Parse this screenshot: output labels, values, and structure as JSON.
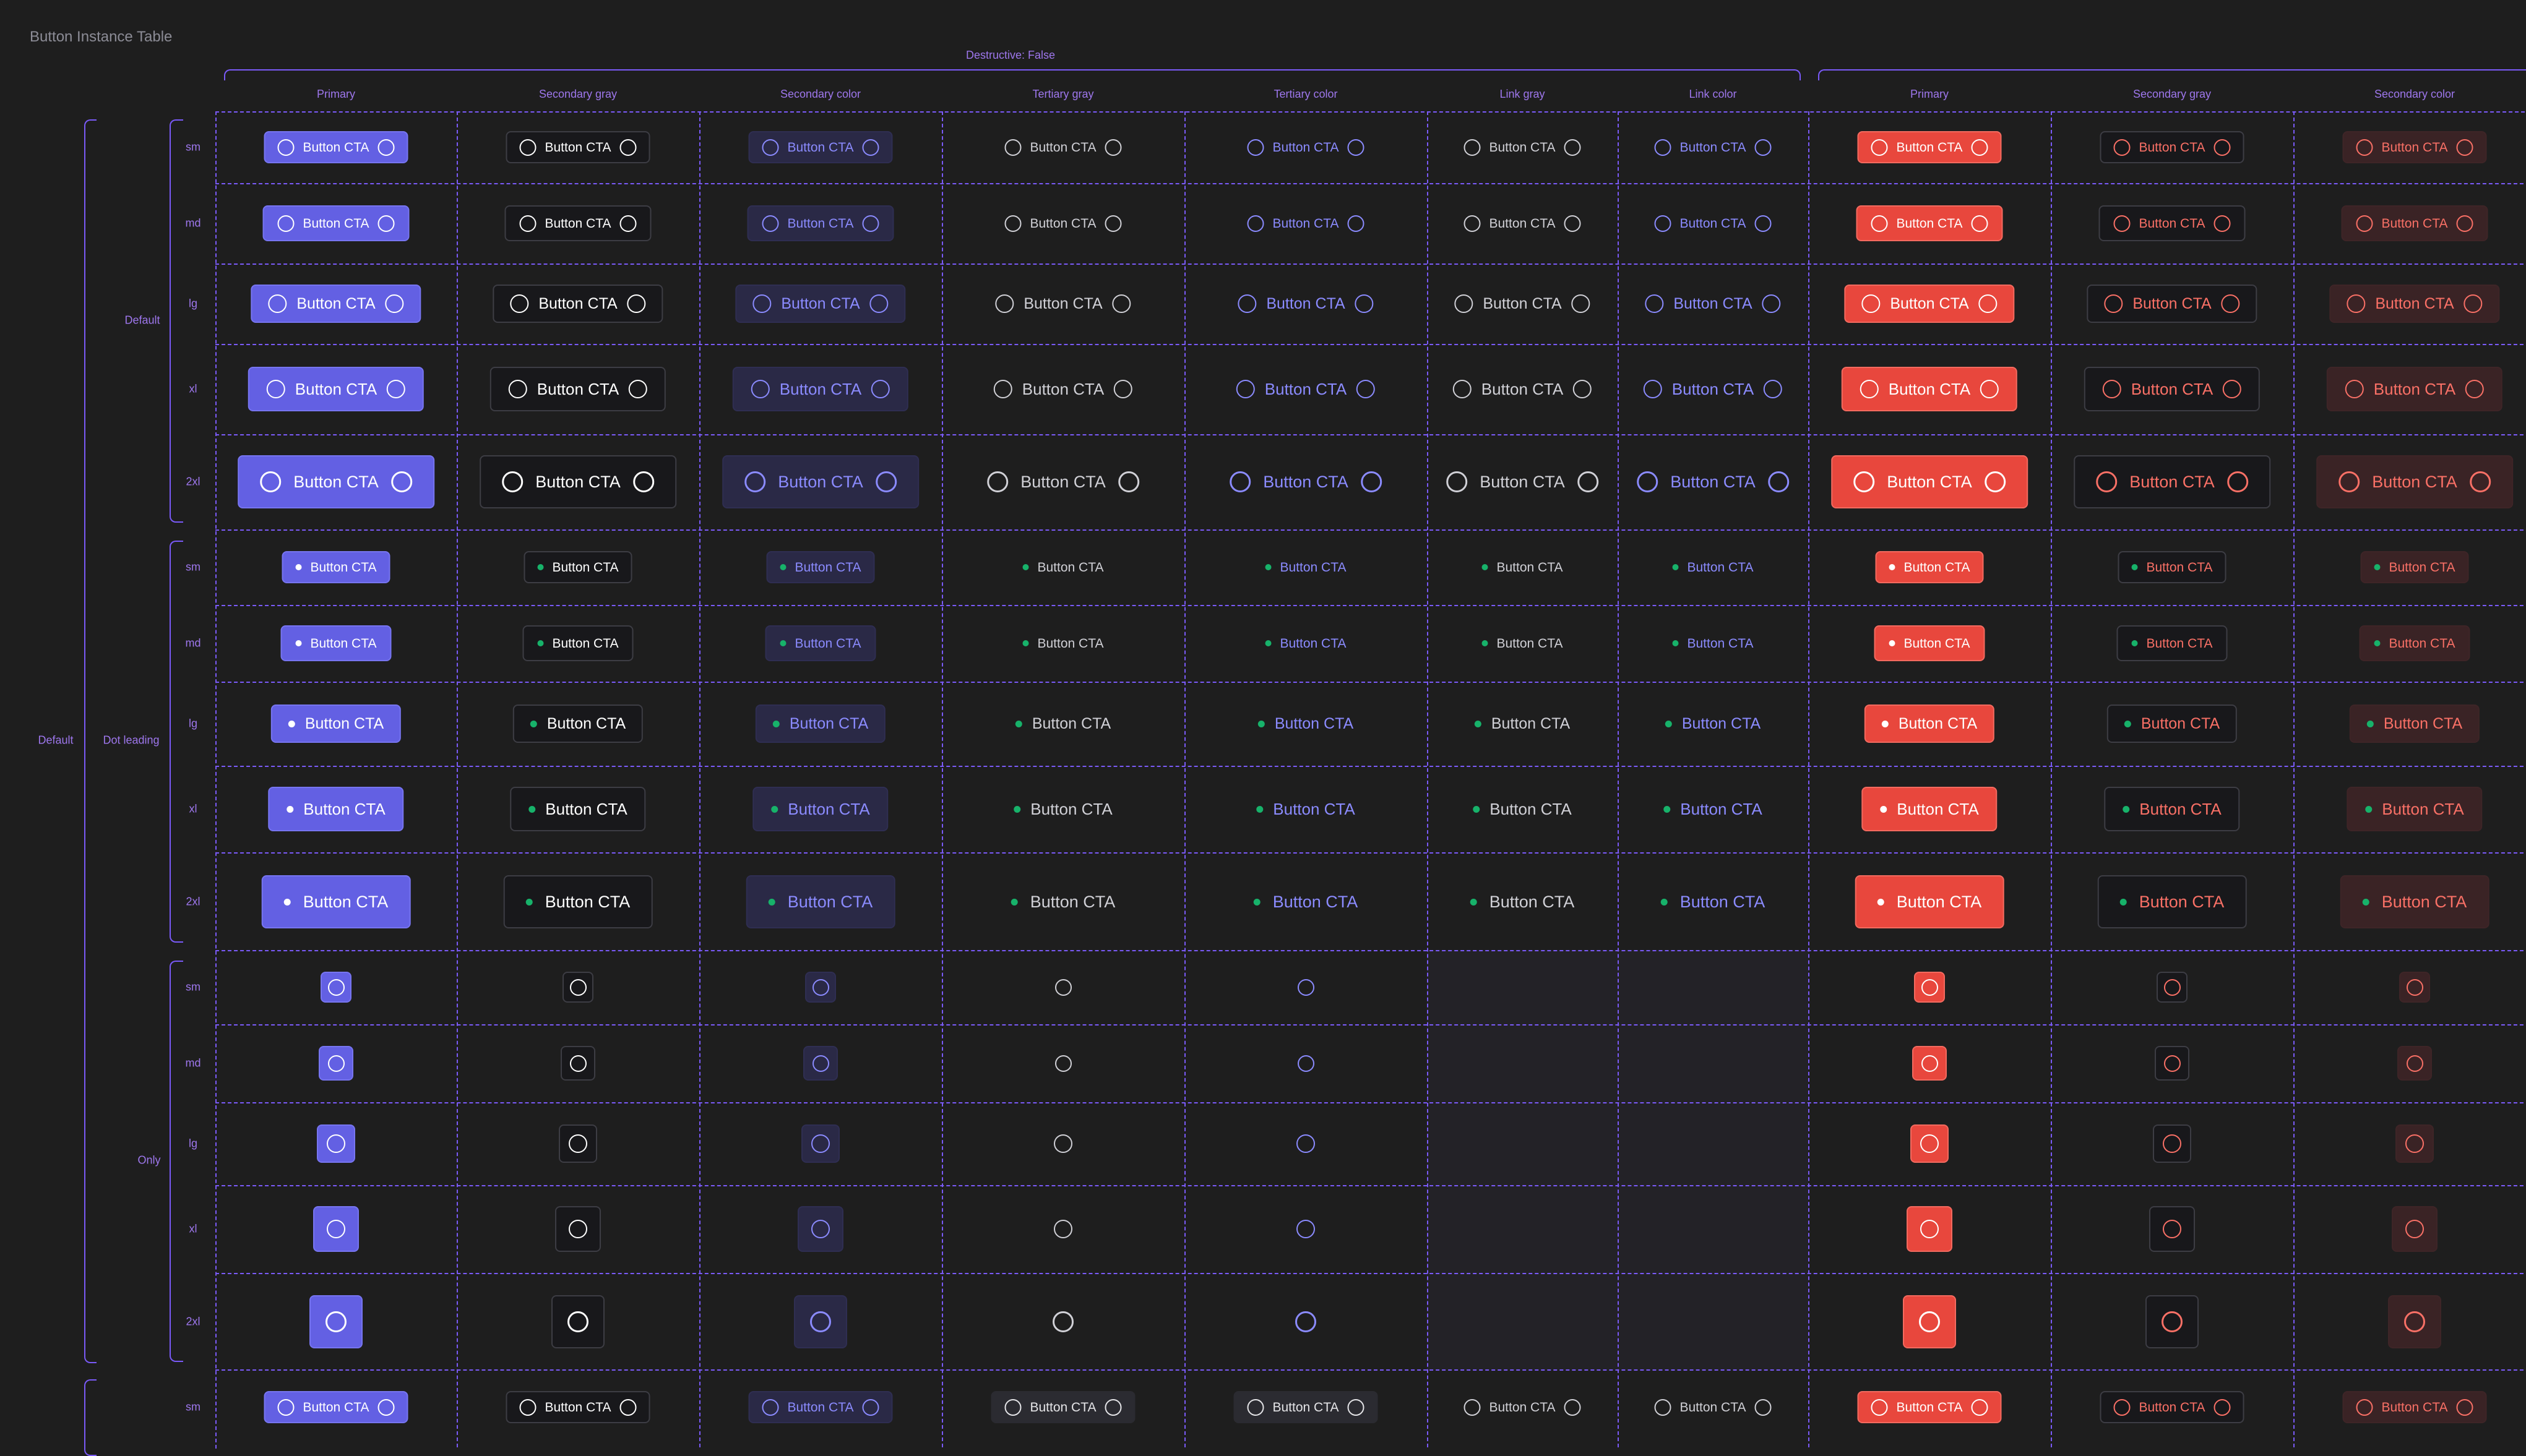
{
  "page_title": "Button Instance Table",
  "group_header": "Destructive: False",
  "columns": [
    "Primary",
    "Secondary gray",
    "Secondary color",
    "Tertiary gray",
    "Tertiary color",
    "Link gray",
    "Link color",
    "Primary",
    "Secondary gray",
    "Secondary color"
  ],
  "sizes": [
    "sm",
    "md",
    "lg",
    "xl",
    "2xl",
    "sm",
    "md",
    "lg",
    "xl",
    "2xl",
    "sm",
    "md",
    "lg",
    "xl",
    "2xl",
    "sm"
  ],
  "state_label": "Default",
  "icon_groups": [
    "Default",
    "Dot leading",
    "Only"
  ],
  "button_text": "Button CTA",
  "colors": {
    "accent": "#7a5af8",
    "label": "#9e77ed",
    "primary": "#6360e3",
    "destructive": "#e8473d",
    "dot": "#17b26a"
  }
}
